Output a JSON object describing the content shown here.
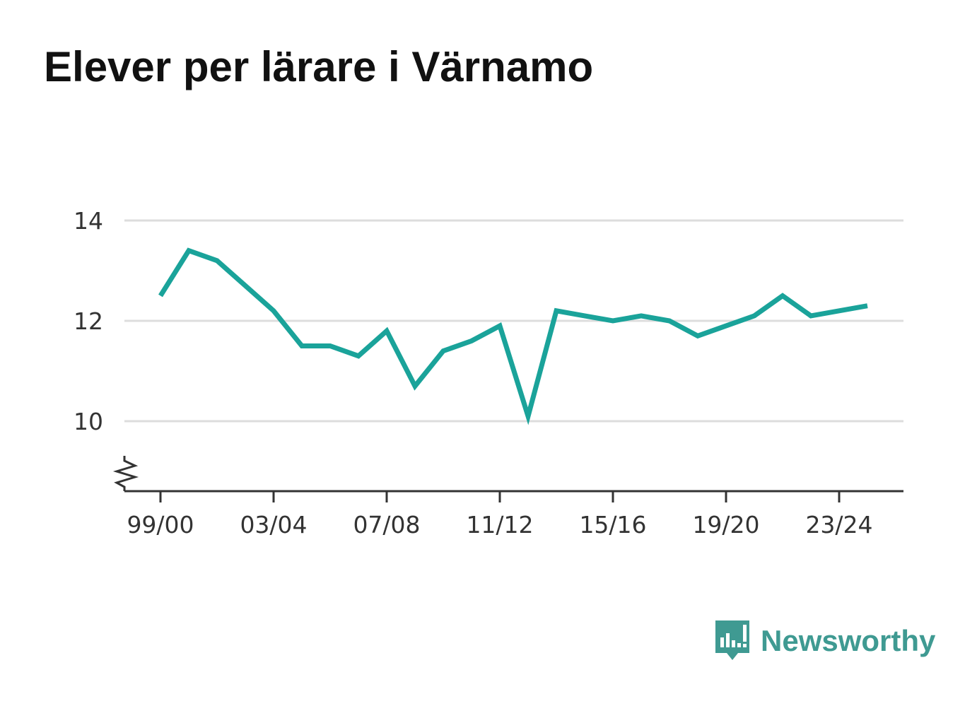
{
  "title": "Elever per lärare i Värnamo",
  "brand": {
    "name": "Newsworthy",
    "icon": "bar-chart-speech-bubble-icon",
    "color": "#3f9a92"
  },
  "chart_data": {
    "type": "line",
    "title": "Elever per lärare i Värnamo",
    "xlabel": "",
    "ylabel": "",
    "x": [
      "99/00",
      "00/01",
      "01/02",
      "02/03",
      "03/04",
      "04/05",
      "05/06",
      "06/07",
      "07/08",
      "08/09",
      "09/10",
      "10/11",
      "11/12",
      "12/13",
      "13/14",
      "14/15",
      "15/16",
      "16/17",
      "17/18",
      "18/19",
      "19/20",
      "20/21",
      "21/22",
      "22/23",
      "23/24",
      "24/25"
    ],
    "x_tick_labels": [
      "99/00",
      "03/04",
      "07/08",
      "11/12",
      "15/16",
      "19/20",
      "23/24"
    ],
    "series": [
      {
        "values": [
          12.5,
          13.4,
          13.2,
          12.7,
          12.2,
          11.5,
          11.5,
          11.3,
          11.8,
          10.7,
          11.4,
          11.6,
          11.9,
          10.1,
          12.2,
          12.1,
          12.0,
          12.1,
          12.0,
          11.7,
          11.9,
          12.1,
          12.5,
          12.1,
          12.2,
          12.3
        ],
        "color": "#1aa39a"
      }
    ],
    "y_ticks": [
      10,
      12,
      14
    ],
    "ylim": [
      8.6,
      14
    ],
    "y_axis_break": true,
    "grid": true,
    "legend": "none"
  }
}
